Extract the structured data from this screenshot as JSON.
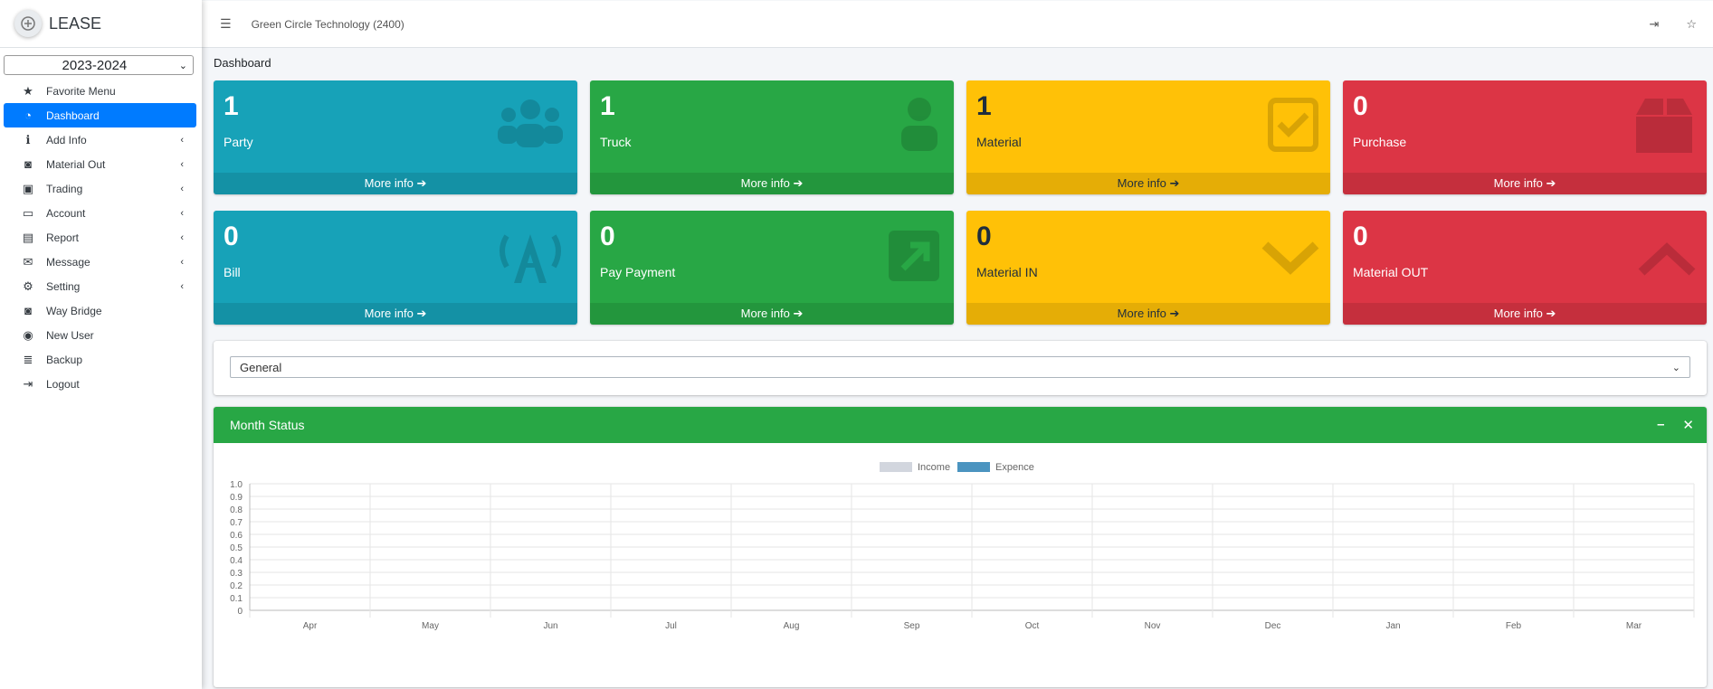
{
  "brand": {
    "name": "LEASE"
  },
  "year": {
    "selected": "2023-2024"
  },
  "sidebar": {
    "items": [
      {
        "label": "Favorite Menu",
        "icon": "star-icon",
        "glyph": "★",
        "caret": false,
        "active": false
      },
      {
        "label": "Dashboard",
        "icon": "tachometer-icon",
        "glyph": "◔",
        "caret": false,
        "active": true
      },
      {
        "label": "Add Info",
        "icon": "info-icon",
        "glyph": "ℹ",
        "caret": true,
        "active": false
      },
      {
        "label": "Material Out",
        "icon": "weight-icon",
        "glyph": "◙",
        "caret": true,
        "active": false
      },
      {
        "label": "Trading",
        "icon": "briefcase-icon",
        "glyph": "▣",
        "caret": true,
        "active": false
      },
      {
        "label": "Account",
        "icon": "money-icon",
        "glyph": "▭",
        "caret": true,
        "active": false
      },
      {
        "label": "Report",
        "icon": "file-icon",
        "glyph": "▤",
        "caret": true,
        "active": false
      },
      {
        "label": "Message",
        "icon": "envelope-icon",
        "glyph": "✉",
        "caret": true,
        "active": false
      },
      {
        "label": "Setting",
        "icon": "gears-icon",
        "glyph": "⚙",
        "caret": true,
        "active": false
      },
      {
        "label": "Way Bridge",
        "icon": "weight-icon",
        "glyph": "◙",
        "caret": false,
        "active": false
      },
      {
        "label": "New User",
        "icon": "user-circle-icon",
        "glyph": "◉",
        "caret": false,
        "active": false
      },
      {
        "label": "Backup",
        "icon": "database-icon",
        "glyph": "≣",
        "caret": false,
        "active": false
      },
      {
        "label": "Logout",
        "icon": "sign-out-icon",
        "glyph": "⇥",
        "caret": false,
        "active": false
      }
    ]
  },
  "topbar": {
    "company": "Green Circle Technology (2400)",
    "menu_icon": "hamburger-icon",
    "right_icons": [
      "sign-out-icon",
      "star-outline-icon"
    ]
  },
  "page": {
    "title": "Dashboard"
  },
  "boxes": [
    {
      "count": "1",
      "label": "Party",
      "more": "More info ➔",
      "color": "info",
      "icon": "users-icon"
    },
    {
      "count": "1",
      "label": "Truck",
      "more": "More info ➔",
      "color": "success",
      "icon": "user-icon"
    },
    {
      "count": "1",
      "label": "Material",
      "more": "More info ➔",
      "color": "warning",
      "icon": "check-square-icon"
    },
    {
      "count": "0",
      "label": "Purchase",
      "more": "More info ➔",
      "color": "danger",
      "icon": "box-icon"
    },
    {
      "count": "0",
      "label": "Bill",
      "more": "More info ➔",
      "color": "info",
      "icon": "broadcast-tower-icon"
    },
    {
      "count": "0",
      "label": "Pay Payment",
      "more": "More info ➔",
      "color": "success",
      "icon": "external-link-icon"
    },
    {
      "count": "0",
      "label": "Material IN",
      "more": "More info ➔",
      "color": "warning",
      "icon": "chevron-down-icon"
    },
    {
      "count": "0",
      "label": "Material OUT",
      "more": "More info ➔",
      "color": "danger",
      "icon": "chevron-up-icon"
    }
  ],
  "filter": {
    "selected": "General"
  },
  "chart_card": {
    "title": "Month Status"
  },
  "chart_data": {
    "type": "bar",
    "categories": [
      "Apr",
      "May",
      "Jun",
      "Jul",
      "Aug",
      "Sep",
      "Oct",
      "Nov",
      "Dec",
      "Jan",
      "Feb",
      "Mar"
    ],
    "series": [
      {
        "name": "Income",
        "color": "#d2d6de",
        "values": [
          0,
          0,
          0,
          0,
          0,
          0,
          0,
          0,
          0,
          0,
          0,
          0
        ]
      },
      {
        "name": "Expence",
        "color": "#4b94c0",
        "values": [
          0,
          0,
          0,
          0,
          0,
          0,
          0,
          0,
          0,
          0,
          0,
          0
        ]
      }
    ],
    "yticks": [
      "0",
      "0.1",
      "0.2",
      "0.3",
      "0.4",
      "0.5",
      "0.6",
      "0.7",
      "0.8",
      "0.9",
      "1.0"
    ],
    "ylim": [
      0,
      1
    ],
    "grid": true,
    "legend": "top-center"
  }
}
